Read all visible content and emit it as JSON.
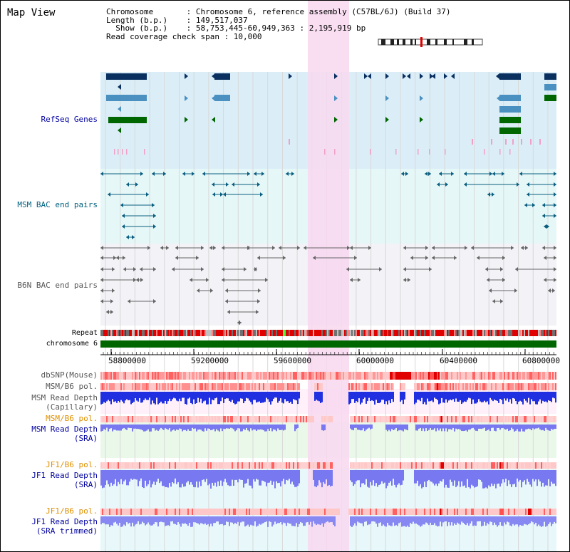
{
  "header": {
    "title": "Map View",
    "info_lines": [
      "Chromosome       : Chromosome 6, reference assembly (C57BL/6J) (Build 37)",
      "Length (b.p.)    : 149,517,037",
      "  Show (b.p.)    : 58,753,445-60,949,363 : 2,195,919 bp",
      "Read coverage check span : 10,000"
    ]
  },
  "tracks": {
    "refseq": "RefSeq Genes",
    "msm_bac": "MSM BAC end pairs",
    "b6n_bac": "B6N BAC end pairs",
    "repeat": "Repeat",
    "chromosome": "chromosome 6",
    "dbsnp": "dbSNP(Mouse)",
    "msm_b6_pol_1": "MSM/B6 pol.",
    "msm_read_depth_cap_1": "MSM Read Depth",
    "msm_read_depth_cap_2": "(Capillary)",
    "msm_b6_pol_2": "MSM/B6 pol.",
    "msm_read_depth_sra_1": "MSM Read Depth",
    "msm_read_depth_sra_2": "(SRA)",
    "jf1_b6_pol_1": "JF1/B6 pol.",
    "jf1_read_depth_sra_1": "JF1 Read Depth",
    "jf1_read_depth_sra_2": "(SRA)",
    "jf1_b6_pol_2": "JF1/B6 pol.",
    "jf1_read_depth_trim_1": "JF1 Read Depth",
    "jf1_read_depth_trim_2": "(SRA trimmed)"
  },
  "axis": {
    "ticks": [
      "58800000",
      "59200000",
      "59600000",
      "60000000",
      "60400000",
      "60800000"
    ]
  },
  "colors": {
    "gene_dark": "#0a3060",
    "gene_mid": "#4a90c0",
    "gene_green": "#006600",
    "msm_bac": "#0a5f80",
    "b6n_bac": "#666666",
    "chromosome": "#006600",
    "highlight": "#f8d8f0",
    "label_blue": "#0000a0",
    "label_orange": "#e09000",
    "label_teal": "#006080",
    "depth_blue": "#2020e0",
    "depth_light": "#8080f0"
  }
}
